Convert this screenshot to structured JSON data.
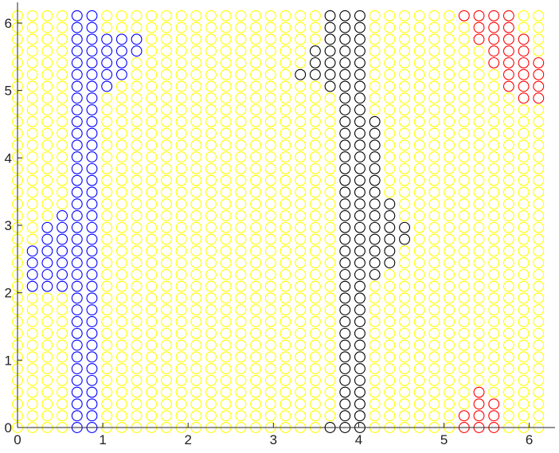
{
  "chart_data": {
    "type": "scatter",
    "marker": "open-circle",
    "grid": false,
    "xlim": [
      0,
      6.2832
    ],
    "ylim": [
      0,
      6.2832
    ],
    "x_ticks": [
      0,
      1,
      2,
      3,
      4,
      5,
      6
    ],
    "y_ticks": [
      0,
      1,
      2,
      3,
      4,
      5,
      6
    ],
    "x_tick_labels": [
      "0",
      "1",
      "2",
      "3",
      "4",
      "5",
      "6"
    ],
    "y_tick_labels": [
      "0",
      "1",
      "2",
      "3",
      "4",
      "5",
      "6"
    ],
    "lattice": {
      "n": 36,
      "step": 0.17453,
      "start": 0
    },
    "background_color": "#ffff00",
    "series": [
      {
        "color": "#0000ff",
        "rows": [
          [
            35,
            4,
            5
          ],
          [
            34,
            4,
            5
          ],
          [
            33,
            4,
            8
          ],
          [
            32,
            4,
            8
          ],
          [
            31,
            4,
            7
          ],
          [
            30,
            4,
            7
          ],
          [
            29,
            4,
            6
          ],
          [
            28,
            4,
            5
          ],
          [
            27,
            4,
            5
          ],
          [
            26,
            4,
            5
          ],
          [
            25,
            4,
            5
          ],
          [
            24,
            4,
            5
          ],
          [
            23,
            4,
            5
          ],
          [
            22,
            4,
            5
          ],
          [
            21,
            4,
            5
          ],
          [
            20,
            4,
            5
          ],
          [
            19,
            4,
            5
          ],
          [
            18,
            3,
            5
          ],
          [
            17,
            2,
            5
          ],
          [
            16,
            2,
            5
          ],
          [
            15,
            1,
            5
          ],
          [
            14,
            1,
            5
          ],
          [
            13,
            1,
            5
          ],
          [
            12,
            1,
            5
          ],
          [
            11,
            4,
            5
          ],
          [
            10,
            4,
            5
          ],
          [
            9,
            4,
            5
          ],
          [
            8,
            4,
            5
          ],
          [
            7,
            4,
            5
          ],
          [
            6,
            4,
            5
          ],
          [
            5,
            4,
            5
          ],
          [
            4,
            4,
            5
          ],
          [
            3,
            4,
            5
          ],
          [
            2,
            4,
            5
          ],
          [
            1,
            4,
            5
          ],
          [
            0,
            4,
            5
          ]
        ]
      },
      {
        "color": "#000000",
        "rows": [
          [
            35,
            21,
            23
          ],
          [
            34,
            21,
            23
          ],
          [
            33,
            21,
            23
          ],
          [
            32,
            20,
            23
          ],
          [
            31,
            20,
            23
          ],
          [
            30,
            19,
            23
          ],
          [
            29,
            21,
            23
          ],
          [
            28,
            22,
            23
          ],
          [
            27,
            22,
            23
          ],
          [
            26,
            22,
            24
          ],
          [
            25,
            22,
            24
          ],
          [
            24,
            22,
            24
          ],
          [
            23,
            22,
            24
          ],
          [
            22,
            22,
            24
          ],
          [
            21,
            22,
            24
          ],
          [
            20,
            22,
            24
          ],
          [
            19,
            22,
            25
          ],
          [
            18,
            22,
            25
          ],
          [
            17,
            22,
            26
          ],
          [
            16,
            22,
            26
          ],
          [
            15,
            22,
            25
          ],
          [
            14,
            22,
            25
          ],
          [
            13,
            22,
            24
          ],
          [
            12,
            22,
            23
          ],
          [
            11,
            22,
            23
          ],
          [
            10,
            22,
            23
          ],
          [
            9,
            22,
            23
          ],
          [
            8,
            22,
            23
          ],
          [
            7,
            22,
            23
          ],
          [
            6,
            22,
            23
          ],
          [
            5,
            22,
            23
          ],
          [
            4,
            22,
            23
          ],
          [
            3,
            22,
            23
          ],
          [
            2,
            22,
            23
          ],
          [
            1,
            22,
            23
          ],
          [
            0,
            21,
            23
          ]
        ]
      },
      {
        "color": "#ff0000",
        "rows": [
          [
            35,
            30,
            33
          ],
          [
            34,
            31,
            33
          ],
          [
            33,
            31,
            34
          ],
          [
            32,
            32,
            34
          ],
          [
            31,
            32,
            35
          ],
          [
            30,
            33,
            35
          ],
          [
            29,
            33,
            35
          ],
          [
            28,
            34,
            35
          ],
          [
            3,
            31,
            31
          ],
          [
            2,
            31,
            32
          ],
          [
            1,
            30,
            32
          ],
          [
            0,
            30,
            32
          ]
        ]
      }
    ]
  }
}
